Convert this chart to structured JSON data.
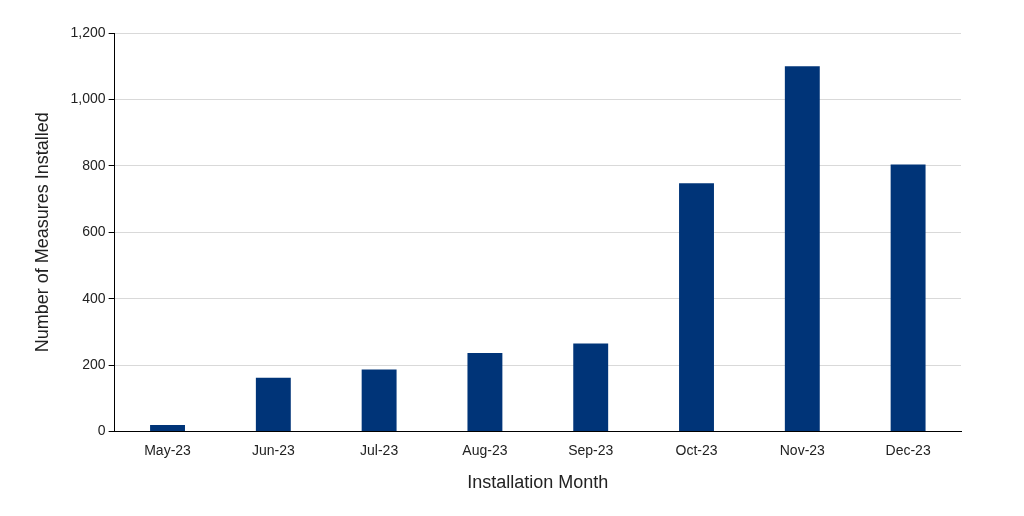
{
  "chart_data": {
    "type": "bar",
    "xlabel": "Installation Month",
    "ylabel": "Number of Measures Installed",
    "categories": [
      "May-23",
      "Jun-23",
      "Jul-23",
      "Aug-23",
      "Sep-23",
      "Oct-23",
      "Nov-23",
      "Dec-23"
    ],
    "values": [
      20,
      162,
      187,
      237,
      265,
      748,
      1100,
      804
    ],
    "color": "#003478",
    "ylim": [
      0,
      1200
    ],
    "yticks": [
      0,
      200,
      400,
      600,
      800,
      {
        "value": 1000,
        "label": "1,000"
      },
      {
        "value": 1200,
        "label": "1,200"
      }
    ],
    "grid": "y"
  }
}
